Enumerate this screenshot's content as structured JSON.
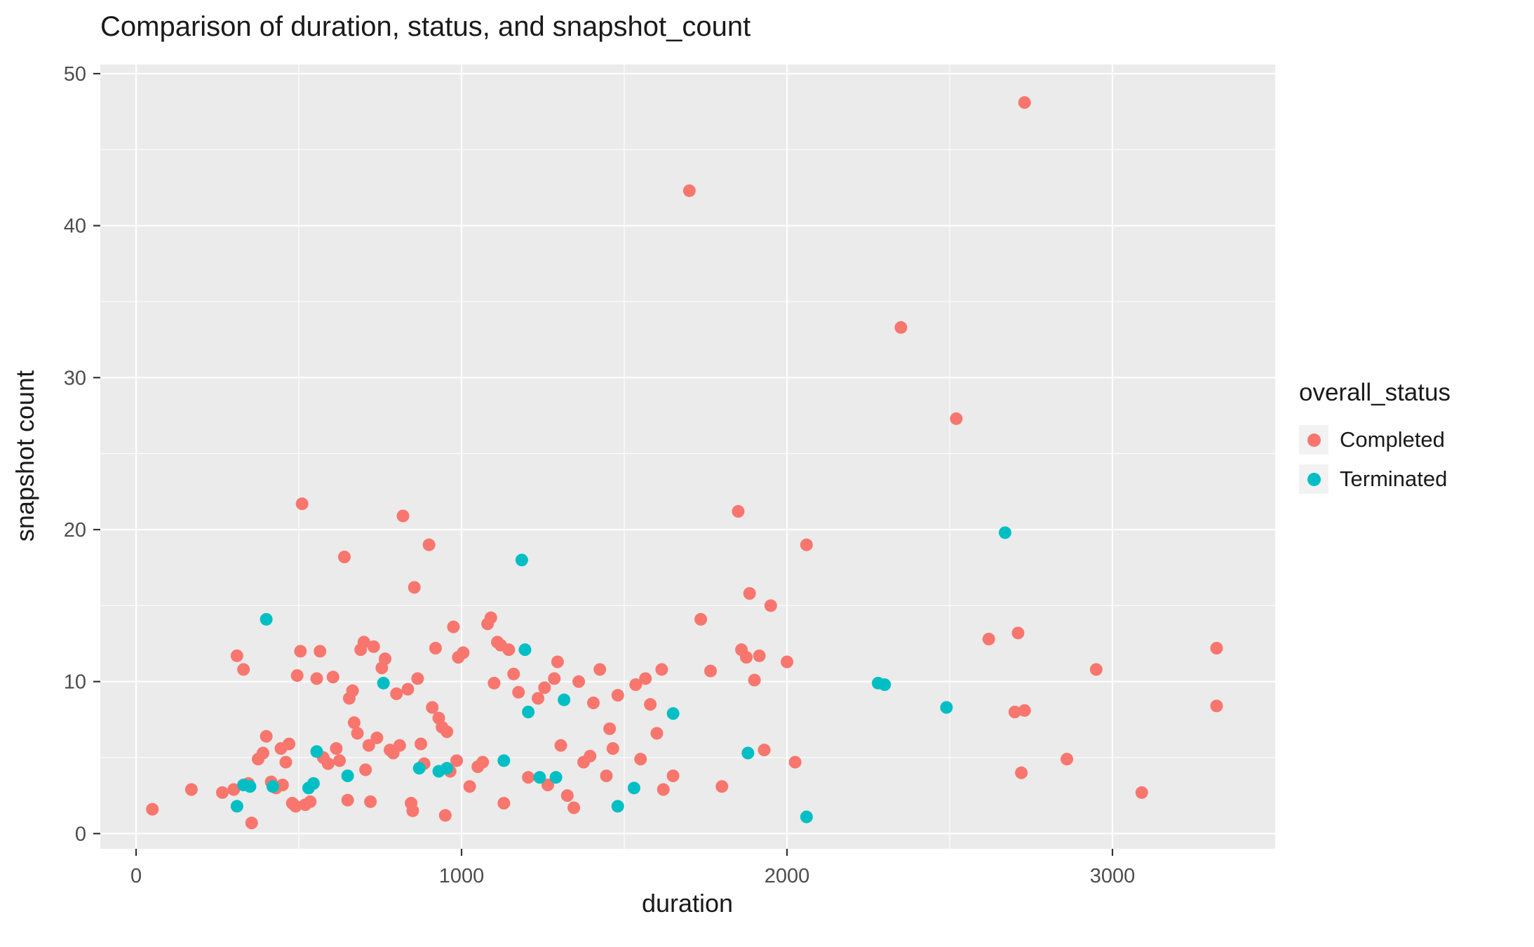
{
  "chart_data": {
    "type": "scatter",
    "title": "Comparison of duration, status, and snapshot_count",
    "xlabel": "duration",
    "ylabel": "snapshot count",
    "xlim": [
      -110,
      3500
    ],
    "ylim": [
      -1,
      50.6
    ],
    "x_ticks": [
      0,
      1000,
      2000,
      3000
    ],
    "y_ticks": [
      0,
      10,
      20,
      30,
      40,
      50
    ],
    "x_minor_ticks": [
      500,
      1500,
      2500
    ],
    "y_minor_ticks": [
      5,
      15,
      25,
      35,
      45
    ],
    "grid": "on",
    "panel_background": "#EBEBEB",
    "gridline_major_color": "#FFFFFF",
    "gridline_minor_color": "#FFFFFF",
    "tick_color": "#333333",
    "tick_label_color": "#4D4D4D",
    "point_radius": 9,
    "legend": {
      "title": "overall_status",
      "position": "right"
    },
    "series": [
      {
        "name": "Completed",
        "color": "#F8766D",
        "points": [
          [
            50,
            1.6
          ],
          [
            170,
            2.9
          ],
          [
            265,
            2.7
          ],
          [
            300,
            2.9
          ],
          [
            310,
            11.7
          ],
          [
            330,
            10.8
          ],
          [
            345,
            3.3
          ],
          [
            355,
            0.7
          ],
          [
            375,
            4.9
          ],
          [
            390,
            5.3
          ],
          [
            400,
            6.4
          ],
          [
            415,
            3.4
          ],
          [
            430,
            3.0
          ],
          [
            445,
            5.6
          ],
          [
            450,
            3.2
          ],
          [
            460,
            4.7
          ],
          [
            470,
            5.9
          ],
          [
            480,
            2.0
          ],
          [
            490,
            1.8
          ],
          [
            495,
            10.4
          ],
          [
            505,
            12.0
          ],
          [
            510,
            21.7
          ],
          [
            520,
            1.9
          ],
          [
            535,
            2.1
          ],
          [
            555,
            10.2
          ],
          [
            565,
            12.0
          ],
          [
            575,
            5.0
          ],
          [
            590,
            4.6
          ],
          [
            605,
            10.3
          ],
          [
            615,
            5.6
          ],
          [
            625,
            4.8
          ],
          [
            640,
            18.2
          ],
          [
            650,
            2.2
          ],
          [
            655,
            8.9
          ],
          [
            665,
            9.4
          ],
          [
            670,
            7.3
          ],
          [
            680,
            6.6
          ],
          [
            690,
            12.1
          ],
          [
            700,
            12.6
          ],
          [
            705,
            4.2
          ],
          [
            715,
            5.8
          ],
          [
            720,
            2.1
          ],
          [
            730,
            12.3
          ],
          [
            740,
            6.3
          ],
          [
            755,
            10.9
          ],
          [
            765,
            11.5
          ],
          [
            780,
            5.5
          ],
          [
            790,
            5.3
          ],
          [
            800,
            9.2
          ],
          [
            810,
            5.8
          ],
          [
            820,
            20.9
          ],
          [
            835,
            9.5
          ],
          [
            845,
            2.0
          ],
          [
            850,
            1.5
          ],
          [
            855,
            16.2
          ],
          [
            865,
            10.2
          ],
          [
            875,
            5.9
          ],
          [
            885,
            4.6
          ],
          [
            900,
            19.0
          ],
          [
            910,
            8.3
          ],
          [
            920,
            12.2
          ],
          [
            930,
            7.6
          ],
          [
            940,
            7.0
          ],
          [
            950,
            1.2
          ],
          [
            955,
            6.7
          ],
          [
            965,
            4.1
          ],
          [
            975,
            13.6
          ],
          [
            985,
            4.8
          ],
          [
            990,
            11.6
          ],
          [
            1005,
            11.9
          ],
          [
            1025,
            3.1
          ],
          [
            1050,
            4.4
          ],
          [
            1065,
            4.7
          ],
          [
            1080,
            13.8
          ],
          [
            1090,
            14.2
          ],
          [
            1100,
            9.9
          ],
          [
            1110,
            12.6
          ],
          [
            1120,
            12.4
          ],
          [
            1130,
            2.0
          ],
          [
            1145,
            12.1
          ],
          [
            1160,
            10.5
          ],
          [
            1175,
            9.3
          ],
          [
            1205,
            3.7
          ],
          [
            1235,
            8.9
          ],
          [
            1255,
            9.6
          ],
          [
            1265,
            3.2
          ],
          [
            1285,
            10.2
          ],
          [
            1295,
            11.3
          ],
          [
            1305,
            5.8
          ],
          [
            1325,
            2.5
          ],
          [
            1345,
            1.7
          ],
          [
            1360,
            10.0
          ],
          [
            1375,
            4.7
          ],
          [
            1395,
            5.1
          ],
          [
            1405,
            8.6
          ],
          [
            1425,
            10.8
          ],
          [
            1445,
            3.8
          ],
          [
            1455,
            6.9
          ],
          [
            1465,
            5.6
          ],
          [
            1480,
            9.1
          ],
          [
            1535,
            9.8
          ],
          [
            1550,
            4.9
          ],
          [
            1565,
            10.2
          ],
          [
            1580,
            8.5
          ],
          [
            1600,
            6.6
          ],
          [
            1615,
            10.8
          ],
          [
            1620,
            2.9
          ],
          [
            1650,
            3.8
          ],
          [
            1700,
            42.3
          ],
          [
            1735,
            14.1
          ],
          [
            1765,
            10.7
          ],
          [
            1800,
            3.1
          ],
          [
            1850,
            21.2
          ],
          [
            1860,
            12.1
          ],
          [
            1875,
            11.6
          ],
          [
            1885,
            15.8
          ],
          [
            1900,
            10.1
          ],
          [
            1915,
            11.7
          ],
          [
            1930,
            5.5
          ],
          [
            1950,
            15.0
          ],
          [
            2000,
            11.3
          ],
          [
            2025,
            4.7
          ],
          [
            2060,
            19.0
          ],
          [
            2350,
            33.3
          ],
          [
            2520,
            27.3
          ],
          [
            2620,
            12.8
          ],
          [
            2700,
            8.0
          ],
          [
            2710,
            13.2
          ],
          [
            2720,
            4.0
          ],
          [
            2730,
            8.1
          ],
          [
            2730,
            48.1
          ],
          [
            2860,
            4.9
          ],
          [
            2950,
            10.8
          ],
          [
            3090,
            2.7
          ],
          [
            3320,
            12.2
          ],
          [
            3320,
            8.4
          ]
        ]
      },
      {
        "name": "Terminated",
        "color": "#00BFC4",
        "points": [
          [
            310,
            1.8
          ],
          [
            330,
            3.2
          ],
          [
            350,
            3.1
          ],
          [
            400,
            14.1
          ],
          [
            420,
            3.1
          ],
          [
            530,
            3.0
          ],
          [
            545,
            3.3
          ],
          [
            555,
            5.4
          ],
          [
            650,
            3.8
          ],
          [
            760,
            9.9
          ],
          [
            870,
            4.3
          ],
          [
            930,
            4.1
          ],
          [
            955,
            4.3
          ],
          [
            1130,
            4.8
          ],
          [
            1185,
            18.0
          ],
          [
            1195,
            12.1
          ],
          [
            1205,
            8.0
          ],
          [
            1240,
            3.7
          ],
          [
            1290,
            3.7
          ],
          [
            1315,
            8.8
          ],
          [
            1480,
            1.8
          ],
          [
            1530,
            3.0
          ],
          [
            1650,
            7.9
          ],
          [
            1880,
            5.3
          ],
          [
            2060,
            1.1
          ],
          [
            2280,
            9.9
          ],
          [
            2300,
            9.8
          ],
          [
            2490,
            8.3
          ],
          [
            2670,
            19.8
          ]
        ]
      }
    ]
  }
}
